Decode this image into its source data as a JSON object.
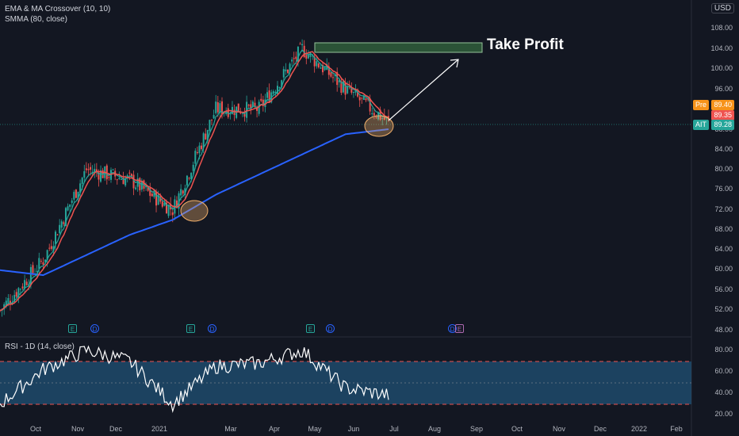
{
  "legend": {
    "indicator1": "EMA & MA Crossover (10, 10)",
    "indicator2": "SMMA (80, close)",
    "rsi": "RSI - 1D (14, close)"
  },
  "currency": "USD",
  "price_axis": [
    "108.00",
    "104.00",
    "100.00",
    "96.00",
    "92.00",
    "88.00",
    "84.00",
    "80.00",
    "76.00",
    "72.00",
    "68.00",
    "64.00",
    "60.00",
    "56.00",
    "52.00",
    "48.00"
  ],
  "rsi_axis": [
    "80.00",
    "60.00",
    "40.00",
    "20.00"
  ],
  "x_axis": [
    "Oct",
    "Nov",
    "Dec",
    "2021",
    "Mar",
    "Apr",
    "May",
    "Jun",
    "Jul",
    "Aug",
    "Sep",
    "Oct",
    "Nov",
    "Dec",
    "2022",
    "Feb"
  ],
  "badges": {
    "pre_label": "Pre",
    "pre_value": "89.40",
    "last_value": "89.35",
    "ticker": "AIT",
    "ticker_value": "89.28"
  },
  "annotation": {
    "take_profit": "Take Profit"
  },
  "events": [
    {
      "type": "E",
      "label": "E"
    },
    {
      "type": "D",
      "label": "D"
    },
    {
      "type": "E",
      "label": "E"
    },
    {
      "type": "D",
      "label": "D"
    },
    {
      "type": "E",
      "label": "E"
    },
    {
      "type": "D",
      "label": "D"
    },
    {
      "type": "D",
      "label": "D"
    },
    {
      "type": "E",
      "label": "E"
    }
  ],
  "colors": {
    "background": "#131722",
    "up": "#26a69a",
    "down": "#ef5350",
    "ema": "#26a69a",
    "ma": "#ef5350",
    "smma": "#2962ff",
    "rsi_band": "#1e4a6b",
    "take_profit_box": "#2e5a3a"
  },
  "chart_data": {
    "type": "line",
    "title": "EMA & MA Crossover (10, 10)",
    "x": [
      "Oct",
      "Nov",
      "Dec",
      "2021",
      "Feb",
      "Mar",
      "Apr",
      "May",
      "Jun",
      "Jul"
    ],
    "ylim": [
      48,
      110
    ],
    "series": [
      {
        "name": "close",
        "values": [
          52,
          62,
          80,
          78,
          72,
          92,
          92,
          104,
          96,
          89.35
        ]
      },
      {
        "name": "SMMA (80, close)",
        "values": [
          60,
          59,
          63,
          67,
          70,
          75,
          79,
          83,
          87,
          88
        ]
      }
    ],
    "rsi_ylim": [
      20,
      85
    ],
    "rsi_values": [
      30,
      62,
      80,
      70,
      30,
      65,
      68,
      80,
      45,
      38
    ]
  }
}
